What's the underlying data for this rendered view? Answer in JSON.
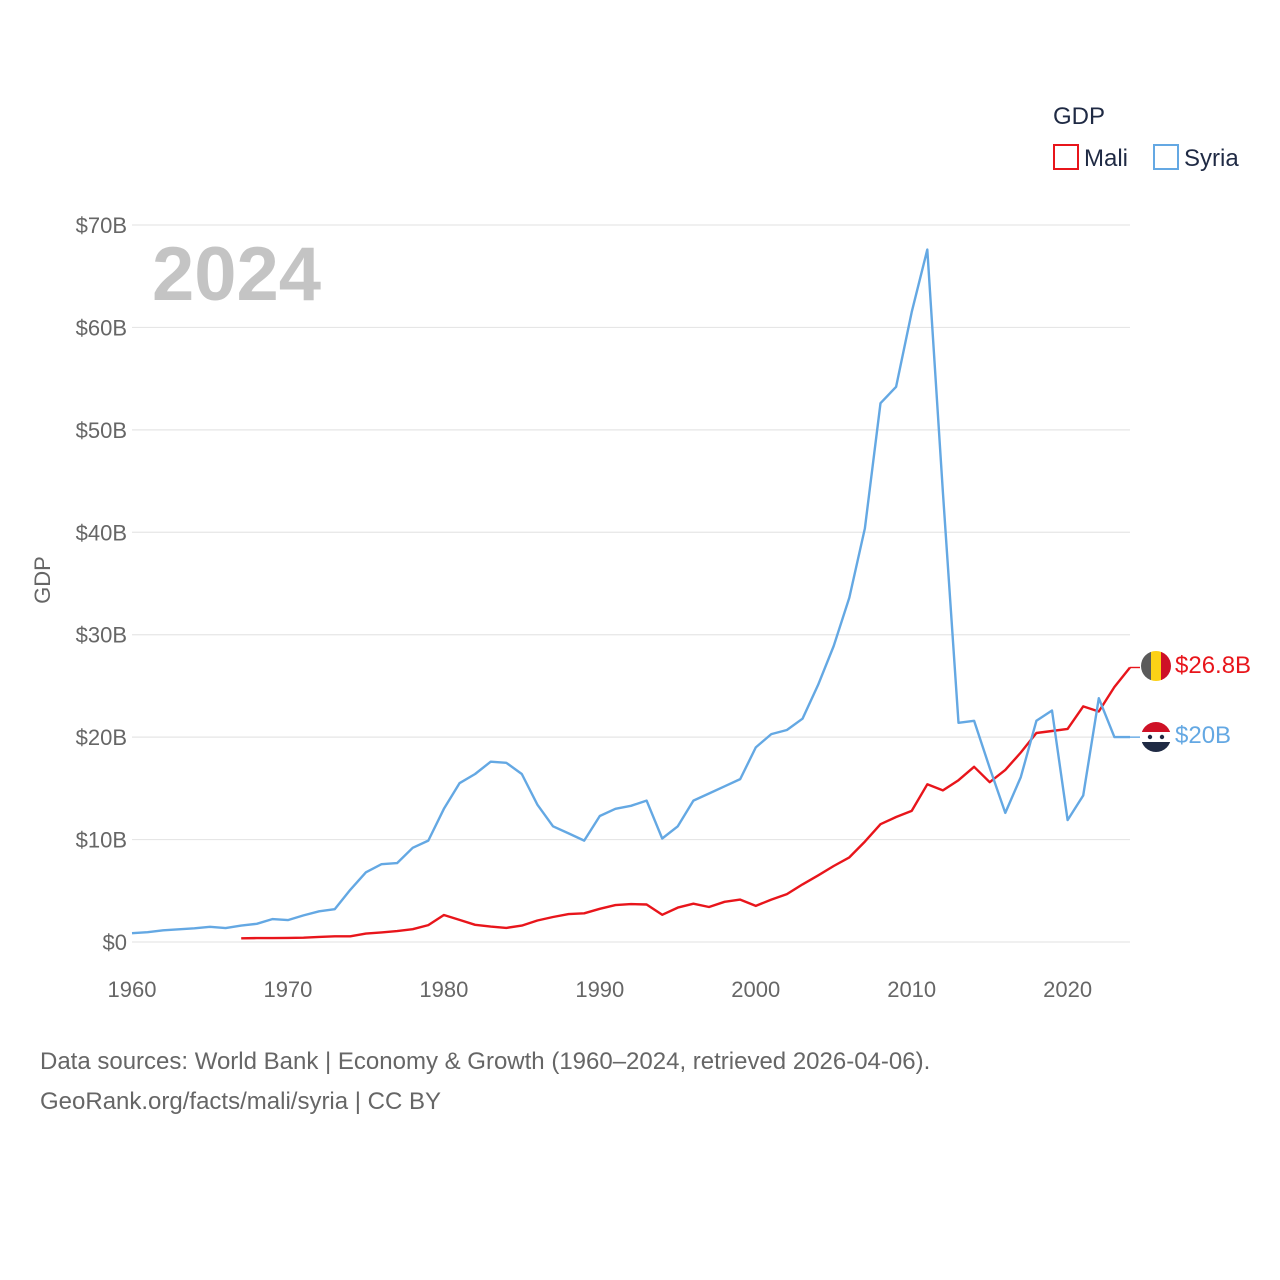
{
  "chart_data": {
    "type": "line",
    "title": "GDP",
    "highlight_year": "2024",
    "ylabel": "GDP",
    "xlabel": "",
    "xlim": [
      1960,
      2024
    ],
    "ylim": [
      0,
      70
    ],
    "x_ticks": [
      1960,
      1970,
      1980,
      1990,
      2000,
      2010,
      2020
    ],
    "y_ticks": [
      0,
      10,
      20,
      30,
      40,
      50,
      60,
      70
    ],
    "y_tick_labels": [
      "$0",
      "$10B",
      "$20B",
      "$30B",
      "$40B",
      "$50B",
      "$60B",
      "$70B"
    ],
    "grid": true,
    "legend_position": "top-right",
    "series": [
      {
        "name": "Mali",
        "color": "#e8151b",
        "end_label": "$26.8B",
        "x": [
          1967,
          1968,
          1969,
          1970,
          1971,
          1972,
          1973,
          1974,
          1975,
          1976,
          1977,
          1978,
          1979,
          1980,
          1981,
          1982,
          1983,
          1984,
          1985,
          1986,
          1987,
          1988,
          1989,
          1990,
          1991,
          1992,
          1993,
          1994,
          1995,
          1996,
          1997,
          1998,
          1999,
          2000,
          2001,
          2002,
          2003,
          2004,
          2005,
          2006,
          2007,
          2008,
          2009,
          2010,
          2011,
          2012,
          2013,
          2014,
          2015,
          2016,
          2017,
          2018,
          2019,
          2020,
          2021,
          2022,
          2023,
          2024
        ],
        "values": [
          0.36,
          0.38,
          0.38,
          0.4,
          0.42,
          0.5,
          0.56,
          0.56,
          0.82,
          0.94,
          1.06,
          1.25,
          1.65,
          2.64,
          2.16,
          1.68,
          1.5,
          1.38,
          1.6,
          2.1,
          2.44,
          2.72,
          2.8,
          3.24,
          3.6,
          3.7,
          3.66,
          2.66,
          3.36,
          3.74,
          3.42,
          3.92,
          4.14,
          3.52,
          4.14,
          4.68,
          5.62,
          6.5,
          7.42,
          8.26,
          9.8,
          11.5,
          12.2,
          12.8,
          15.4,
          14.8,
          15.8,
          17.1,
          15.6,
          16.8,
          18.5,
          20.4,
          20.6,
          20.8,
          23.0,
          22.5,
          24.9,
          26.8
        ]
      },
      {
        "name": "Syria",
        "color": "#64a8e3",
        "end_label": "$20B",
        "x": [
          1960,
          1961,
          1962,
          1963,
          1964,
          1965,
          1966,
          1967,
          1968,
          1969,
          1970,
          1971,
          1972,
          1973,
          1974,
          1975,
          1976,
          1977,
          1978,
          1979,
          1980,
          1981,
          1982,
          1983,
          1984,
          1985,
          1986,
          1987,
          1988,
          1989,
          1990,
          1991,
          1992,
          1993,
          1994,
          1995,
          1996,
          1997,
          1998,
          1999,
          2000,
          2001,
          2002,
          2003,
          2004,
          2005,
          2006,
          2007,
          2008,
          2009,
          2010,
          2011,
          2012,
          2013,
          2014,
          2015,
          2016,
          2017,
          2018,
          2019,
          2020,
          2021,
          2022,
          2023,
          2024
        ],
        "values": [
          0.86,
          0.96,
          1.14,
          1.24,
          1.34,
          1.48,
          1.36,
          1.6,
          1.78,
          2.24,
          2.14,
          2.6,
          3.0,
          3.2,
          5.1,
          6.8,
          7.6,
          7.7,
          9.2,
          9.9,
          13.0,
          15.5,
          16.4,
          17.6,
          17.5,
          16.4,
          13.4,
          11.3,
          10.6,
          9.9,
          12.3,
          13.0,
          13.3,
          13.8,
          10.1,
          11.3,
          13.8,
          14.5,
          15.2,
          15.9,
          19.0,
          20.3,
          20.7,
          21.8,
          25.1,
          28.9,
          33.6,
          40.4,
          52.6,
          54.2,
          61.5,
          67.6,
          43.9,
          21.4,
          21.6,
          17.0,
          12.6,
          16.1,
          21.6,
          22.6,
          11.9,
          14.3,
          23.8,
          20.0,
          20.0
        ]
      }
    ]
  },
  "source": {
    "line1": "Data sources: World Bank | Economy & Growth (1960–2024, retrieved 2026-04-06).",
    "line2": "GeoRank.org/facts/mali/syria | CC BY"
  },
  "icons": {
    "mali_flag": "mali-flag-icon",
    "syria_flag": "syria-flag-icon"
  }
}
